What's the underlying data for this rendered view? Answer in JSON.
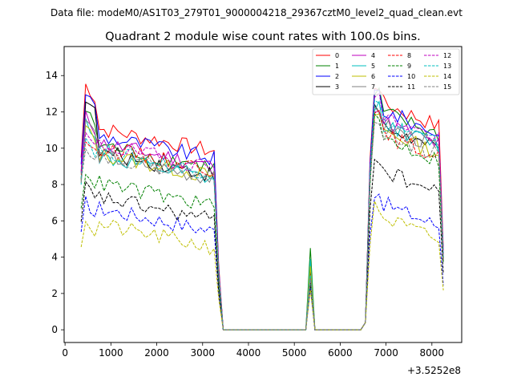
{
  "chart_data": {
    "type": "line",
    "suptitle": "Data file: modeM0/AS1T03_279T01_9000004218_29367cztM0_level2_quad_clean.evt",
    "title": "Quadrant 2 module wise count rates with 100.0s bins.",
    "xlabel": "",
    "ylabel": "",
    "x_offset_label": "+3.5252e8",
    "xlim": [
      -20,
      8650
    ],
    "ylim": [
      -0.7,
      15.6
    ],
    "x_ticks": [
      0,
      1000,
      2000,
      3000,
      4000,
      5000,
      6000,
      7000,
      8000
    ],
    "y_ticks": [
      0,
      2,
      4,
      6,
      8,
      10,
      12,
      14
    ],
    "legend_position": "top-right",
    "series": [
      {
        "name": "0",
        "color": "#ff0000",
        "style": "solid",
        "active1": 10.2,
        "peak": 13.5,
        "active2": 12.5,
        "spike": 2.6
      },
      {
        "name": "1",
        "color": "#008000",
        "style": "solid",
        "active1": 9.3,
        "peak": 12.1,
        "active2": 12.0,
        "spike": 4.5
      },
      {
        "name": "2",
        "color": "#0000ff",
        "style": "solid",
        "active1": 9.8,
        "peak": 13.1,
        "active2": 12.1,
        "spike": 2.7
      },
      {
        "name": "3",
        "color": "#000000",
        "style": "solid",
        "active1": 8.9,
        "peak": 12.8,
        "active2": 11.2,
        "spike": 3.2
      },
      {
        "name": "4",
        "color": "#bf00bf",
        "style": "solid",
        "active1": 9.4,
        "peak": 11.8,
        "active2": 11.5,
        "spike": 3.0
      },
      {
        "name": "5",
        "color": "#00bfbf",
        "style": "solid",
        "active1": 8.6,
        "peak": 11.5,
        "active2": 11.4,
        "spike": 3.9
      },
      {
        "name": "6",
        "color": "#bfbf00",
        "style": "solid",
        "active1": 8.8,
        "peak": 11.2,
        "active2": 11.0,
        "spike": 3.5
      },
      {
        "name": "7",
        "color": "#808080",
        "style": "solid",
        "active1": 8.7,
        "peak": 11.6,
        "active2": 11.3,
        "spike": 2.9
      },
      {
        "name": "8",
        "color": "#ff0000",
        "style": "dashed",
        "active1": 9.2,
        "peak": 10.5,
        "active2": 10.8,
        "spike": 2.8
      },
      {
        "name": "9",
        "color": "#008000",
        "style": "dashed",
        "active1": 7.2,
        "peak": 8.8,
        "active2": 10.6,
        "spike": 2.5
      },
      {
        "name": "10",
        "color": "#0000ff",
        "style": "dashed",
        "active1": 5.8,
        "peak": 7.1,
        "active2": 7.0,
        "spike": 2.3
      },
      {
        "name": "11",
        "color": "#000000",
        "style": "dashed",
        "active1": 6.4,
        "peak": 8.0,
        "active2": 8.8,
        "spike": 2.6
      },
      {
        "name": "12",
        "color": "#bf00bf",
        "style": "dashed",
        "active1": 9.3,
        "peak": 10.8,
        "active2": 11.8,
        "spike": 2.9
      },
      {
        "name": "13",
        "color": "#00bfbf",
        "style": "dashed",
        "active1": 9.0,
        "peak": 10.6,
        "active2": 11.5,
        "spike": 3.0
      },
      {
        "name": "14",
        "color": "#bfbf00",
        "style": "dashed",
        "active1": 4.9,
        "peak": 6.1,
        "active2": 6.2,
        "spike": 2.2
      },
      {
        "name": "15",
        "color": "#808080",
        "style": "dashed",
        "active1": 8.8,
        "peak": 10.2,
        "active2": 10.9,
        "spike": 2.8
      }
    ]
  }
}
